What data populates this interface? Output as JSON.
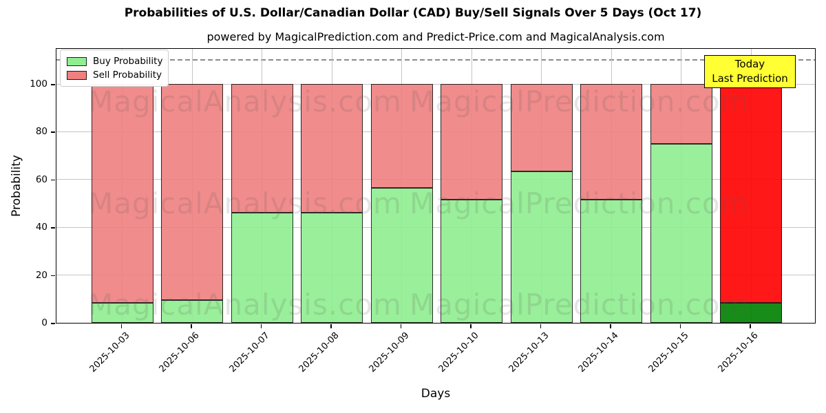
{
  "chart_data": {
    "type": "bar",
    "stacked": true,
    "title": "Probabilities of U.S. Dollar/Canadian Dollar (CAD) Buy/Sell Signals Over 5 Days (Oct 17)",
    "subtitle": "powered by MagicalPrediction.com and Predict-Price.com and MagicalAnalysis.com",
    "xlabel": "Days",
    "ylabel": "Probability",
    "ylim": [
      0,
      115.3
    ],
    "y_ticks": [
      0,
      20,
      40,
      60,
      80,
      100
    ],
    "grid": true,
    "legend_position": "upper left",
    "dashed_threshold_y": 110,
    "categories": [
      "2025-10-03",
      "2025-10-06",
      "2025-10-07",
      "2025-10-08",
      "2025-10-09",
      "2025-10-10",
      "2025-10-13",
      "2025-10-14",
      "2025-10-15",
      "2025-10-16"
    ],
    "series": [
      {
        "name": "Buy Probability",
        "color": "#90EE90",
        "values": [
          8.5,
          9.5,
          46,
          46,
          56.5,
          51.5,
          63.5,
          51.5,
          75,
          8.5
        ]
      },
      {
        "name": "Sell Probability",
        "color": "#F08080",
        "values": [
          91.5,
          90.5,
          54,
          54,
          43.5,
          48.5,
          36.5,
          48.5,
          25,
          91.5
        ]
      }
    ],
    "today": {
      "category": "2025-10-16",
      "index": 9,
      "buy_color": "#008000",
      "sell_color": "#FF0000",
      "box_color": "#FFFF33",
      "box_line1": "Today",
      "box_line2": "Last Prediction"
    }
  },
  "watermarks": {
    "items": [
      {
        "text": "MagicalAnalysis.com"
      },
      {
        "text": "MagicalPrediction.com"
      },
      {
        "text": "MagicalAnalysis.com"
      },
      {
        "text": "MagicalPrediction.com"
      },
      {
        "text": "MagicalAnalysis.com"
      },
      {
        "text": "MagicalPrediction.com"
      }
    ]
  }
}
